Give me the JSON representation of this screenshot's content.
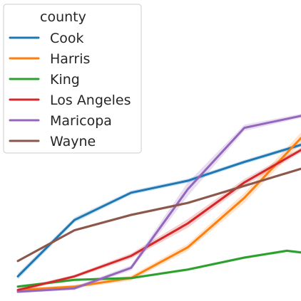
{
  "chart_data": {
    "type": "line",
    "title": "",
    "xlabel": "",
    "ylabel": "",
    "x": [
      0,
      1,
      2,
      3,
      4,
      5,
      6,
      7,
      8,
      9,
      10
    ],
    "xlim": [
      0,
      10
    ],
    "ylim": [
      0,
      100
    ],
    "grid": false,
    "legend": {
      "title": "county",
      "placement": "upper-left"
    },
    "series": [
      {
        "name": "Cook",
        "color": "#1f77b4",
        "x": [
          0,
          2,
          4,
          6,
          8,
          10
        ],
        "values": [
          9,
          42,
          58,
          65,
          76,
          86
        ],
        "band": [
          1.8,
          1.5,
          1.2,
          1.2,
          1.2,
          1.2
        ]
      },
      {
        "name": "Harris",
        "color": "#ff7f0e",
        "x": [
          0,
          2,
          4,
          6,
          8,
          10
        ],
        "values": [
          1,
          3,
          8,
          26,
          55,
          90
        ],
        "band": [
          1,
          1,
          1.5,
          2,
          2.8,
          3.2
        ]
      },
      {
        "name": "King",
        "color": "#2ca02c",
        "x": [
          0,
          2,
          4,
          6,
          8,
          9.5,
          10
        ],
        "values": [
          3,
          7,
          8,
          13,
          20,
          24,
          23
        ],
        "band": [
          0.8,
          0.8,
          0.8,
          0.8,
          0.8,
          0.8,
          0.8
        ]
      },
      {
        "name": "Los Angeles",
        "color": "#d62728",
        "x": [
          0,
          2,
          4,
          6,
          8,
          10
        ],
        "values": [
          1,
          9,
          21,
          40,
          64,
          83
        ],
        "band": [
          1,
          1,
          1.5,
          2.5,
          2,
          1.5
        ]
      },
      {
        "name": "Maricopa",
        "color": "#9467bd",
        "x": [
          0,
          2,
          4,
          6,
          8,
          10
        ],
        "values": [
          0,
          2,
          14,
          60,
          96,
          103
        ],
        "band": [
          0.8,
          1,
          1.5,
          4,
          1.8,
          1.2
        ]
      },
      {
        "name": "Wayne",
        "color": "#8c564b",
        "x": [
          0,
          2,
          4,
          6,
          8,
          10
        ],
        "values": [
          18,
          36,
          45,
          52,
          62,
          72
        ],
        "band": [
          0.8,
          0.8,
          0.8,
          0.8,
          0.8,
          0.8
        ]
      }
    ]
  }
}
